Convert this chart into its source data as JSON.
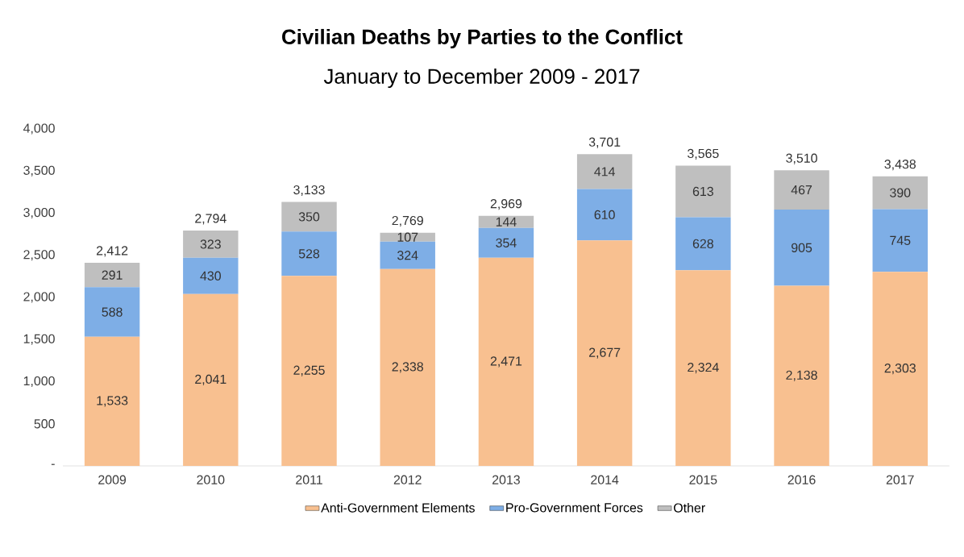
{
  "chart_data": {
    "type": "bar",
    "stacked": true,
    "title": "Civilian Deaths by Parties to the Conflict",
    "subtitle": "January to December 2009 - 2017",
    "categories": [
      "2009",
      "2010",
      "2011",
      "2012",
      "2013",
      "2014",
      "2015",
      "2016",
      "2017"
    ],
    "series": [
      {
        "name": "Anti-Government Elements",
        "color": "#f8c090",
        "values": [
          1533,
          2041,
          2255,
          2338,
          2471,
          2677,
          2324,
          2138,
          2303
        ],
        "value_labels": [
          "1,533",
          "2,041",
          "2,255",
          "2,338",
          "2,471",
          "2,677",
          "2,324",
          "2,138",
          "2,303"
        ]
      },
      {
        "name": "Pro-Government Forces",
        "color": "#7eaee6",
        "values": [
          588,
          430,
          528,
          324,
          354,
          610,
          628,
          905,
          745
        ],
        "value_labels": [
          "588",
          "430",
          "528",
          "324",
          "354",
          "610",
          "628",
          "905",
          "745"
        ]
      },
      {
        "name": "Other",
        "color": "#bfbfbf",
        "values": [
          291,
          323,
          350,
          107,
          144,
          414,
          613,
          467,
          390
        ],
        "value_labels": [
          "291",
          "323",
          "350",
          "107",
          "144",
          "414",
          "613",
          "467",
          "390"
        ]
      }
    ],
    "totals": [
      "2,412",
      "2,794",
      "3,133",
      "2,769",
      "2,969",
      "3,701",
      "3,565",
      "3,510",
      "3,438"
    ],
    "ylim": [
      0,
      4000
    ],
    "yticks": [
      {
        "value": 0,
        "label": "-"
      },
      {
        "value": 500,
        "label": "500"
      },
      {
        "value": 1000,
        "label": "1,000"
      },
      {
        "value": 1500,
        "label": "1,500"
      },
      {
        "value": 2000,
        "label": "2,000"
      },
      {
        "value": 2500,
        "label": "2,500"
      },
      {
        "value": 3000,
        "label": "3,000"
      },
      {
        "value": 3500,
        "label": "3,500"
      },
      {
        "value": 4000,
        "label": "4,000"
      }
    ],
    "legend": "bottom",
    "grid": false
  }
}
